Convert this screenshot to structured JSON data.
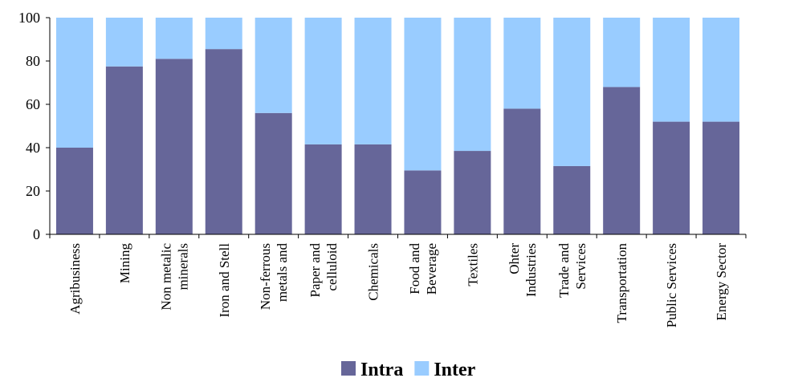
{
  "chart_data": {
    "type": "bar",
    "stacked": true,
    "title": "",
    "xlabel": "",
    "ylabel": "",
    "ylim": [
      0,
      100
    ],
    "yticks": [
      0,
      20,
      40,
      60,
      80,
      100
    ],
    "grid": false,
    "legend_position": "bottom",
    "categories": [
      [
        "Agribusiness"
      ],
      [
        "Mining"
      ],
      [
        "Non metalic",
        "minerals"
      ],
      [
        "Iron and Stell"
      ],
      [
        "Non-ferrous",
        "metals and"
      ],
      [
        "Paper and",
        "celluloid"
      ],
      [
        "Chemicals"
      ],
      [
        "Food and",
        "Beverage"
      ],
      [
        "Textiles"
      ],
      [
        "Ohter",
        "Industries"
      ],
      [
        "Trade and",
        "Services"
      ],
      [
        "Transportation"
      ],
      [
        "Public Services"
      ],
      [
        "Energy Sector"
      ]
    ],
    "series": [
      {
        "name": "Intra",
        "color": "#666699",
        "values": [
          40,
          77.5,
          81,
          85.5,
          56,
          41.5,
          41.5,
          29.5,
          38.5,
          58,
          31.5,
          68,
          52,
          52
        ]
      },
      {
        "name": "Inter",
        "color": "#99ccff",
        "values": [
          60,
          22.5,
          19,
          14.5,
          44,
          58.5,
          58.5,
          70.5,
          61.5,
          42,
          68.5,
          32,
          48,
          48
        ]
      }
    ]
  }
}
